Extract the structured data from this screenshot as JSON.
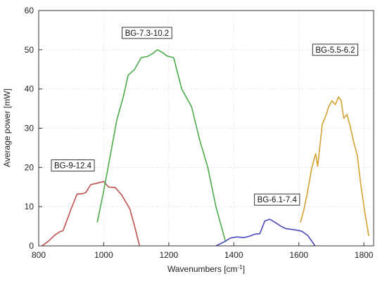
{
  "chart_data": {
    "type": "line",
    "title": "",
    "xlabel": "Wavenumbers [cm",
    "xlabel_sup": "-1",
    "xlabel_end": "]",
    "ylabel": "Average power [mW]",
    "xlim": [
      800,
      1830
    ],
    "ylim": [
      0,
      60
    ],
    "xticks": [
      800,
      1000,
      1200,
      1400,
      1600,
      1800
    ],
    "yticks": [
      0,
      10,
      20,
      30,
      40,
      50,
      60
    ],
    "grid": true,
    "legend": "none",
    "series": [
      {
        "name": "BG-9-12.4",
        "color": "#c0504d",
        "label_anchor": {
          "x": 905,
          "y": 20.5
        },
        "points": [
          [
            810,
            0
          ],
          [
            830,
            1.2
          ],
          [
            850,
            2.8
          ],
          [
            865,
            3.6
          ],
          [
            875,
            3.9
          ],
          [
            900,
            9.5
          ],
          [
            918,
            13.2
          ],
          [
            935,
            13.3
          ],
          [
            945,
            13.6
          ],
          [
            960,
            15.6
          ],
          [
            980,
            16.0
          ],
          [
            1000,
            16.4
          ],
          [
            1015,
            15.0
          ],
          [
            1035,
            14.9
          ],
          [
            1055,
            13.0
          ],
          [
            1080,
            9.5
          ],
          [
            1095,
            5.0
          ],
          [
            1110,
            0
          ]
        ]
      },
      {
        "name": "BG-7.3-10.2",
        "color": "#4aaa4a",
        "label_anchor": {
          "x": 1133,
          "y": 54.3
        },
        "points": [
          [
            980,
            6
          ],
          [
            1000,
            14
          ],
          [
            1020,
            23
          ],
          [
            1040,
            32
          ],
          [
            1060,
            38
          ],
          [
            1075,
            43.5
          ],
          [
            1095,
            45
          ],
          [
            1115,
            48
          ],
          [
            1135,
            48.3
          ],
          [
            1150,
            49
          ],
          [
            1165,
            50
          ],
          [
            1180,
            49.3
          ],
          [
            1195,
            48.4
          ],
          [
            1215,
            48
          ],
          [
            1240,
            40
          ],
          [
            1270,
            35.5
          ],
          [
            1295,
            27
          ],
          [
            1320,
            20
          ],
          [
            1345,
            10
          ],
          [
            1375,
            1
          ]
        ]
      },
      {
        "name": "BG-6.1-7.4",
        "color": "#4a4aba",
        "label_anchor": {
          "x": 1533,
          "y": 11.8
        },
        "points": [
          [
            1345,
            0
          ],
          [
            1370,
            1
          ],
          [
            1390,
            2
          ],
          [
            1410,
            2.3
          ],
          [
            1430,
            2.1
          ],
          [
            1450,
            2.5
          ],
          [
            1465,
            3.0
          ],
          [
            1480,
            3.1
          ],
          [
            1495,
            6.3
          ],
          [
            1510,
            6.8
          ],
          [
            1525,
            6.1
          ],
          [
            1545,
            5.0
          ],
          [
            1560,
            4.4
          ],
          [
            1595,
            4.0
          ],
          [
            1610,
            3.7
          ],
          [
            1628,
            2.6
          ],
          [
            1650,
            0
          ]
        ]
      },
      {
        "name": "BG-5.5-6.2",
        "color": "#d4a030",
        "label_anchor": {
          "x": 1712,
          "y": 50.0
        },
        "points": [
          [
            1605,
            6
          ],
          [
            1615,
            9
          ],
          [
            1625,
            13
          ],
          [
            1640,
            20
          ],
          [
            1652,
            23.5
          ],
          [
            1658,
            20.3
          ],
          [
            1665,
            25.5
          ],
          [
            1672,
            31
          ],
          [
            1680,
            32.5
          ],
          [
            1692,
            35.5
          ],
          [
            1702,
            37
          ],
          [
            1712,
            36
          ],
          [
            1722,
            38
          ],
          [
            1730,
            37
          ],
          [
            1738,
            32.5
          ],
          [
            1748,
            33.5
          ],
          [
            1758,
            30.5
          ],
          [
            1770,
            26
          ],
          [
            1780,
            23
          ],
          [
            1790,
            16
          ],
          [
            1802,
            9
          ],
          [
            1815,
            2.5
          ]
        ]
      }
    ]
  }
}
